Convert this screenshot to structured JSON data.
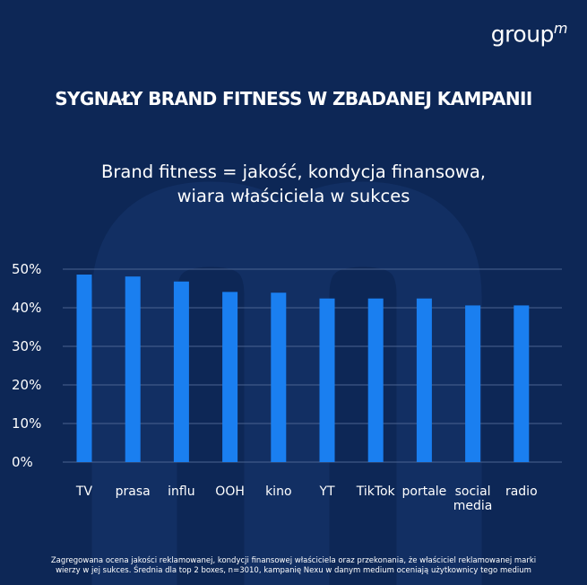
{
  "brand": {
    "logo_main": "group",
    "logo_sup": "m"
  },
  "headline": "SYGNAŁY BRAND FITNESS W ZBADANEJ KAMPANII",
  "subtitle": {
    "line1": "Brand fitness = jakość, kondycja finansowa,",
    "line2": "wiara właściciela w sukces"
  },
  "footnote": {
    "line1": "Zagregowana ocena jakości reklamowanej, kondycji finansowej właściciela oraz przekonania, że właściciel reklamowanej marki",
    "line2": "wierzy w jej sukces. Średnia dla top 2 boxes, n=3010, kampanię Nexu w danym medium oceniają użytkownicy tego medium"
  },
  "colors": {
    "background": "#0d2756",
    "bar": "#1a7ff0",
    "grid": "#4a6390",
    "text": "#ffffff"
  },
  "chart_data": {
    "type": "bar",
    "categories": [
      "TV",
      "prasa",
      "influ",
      "OOH",
      "kino",
      "YT",
      "TikTok",
      "portale",
      "social media",
      "radio"
    ],
    "category_lines": [
      [
        "TV"
      ],
      [
        "prasa"
      ],
      [
        "influ"
      ],
      [
        "OOH"
      ],
      [
        "kino"
      ],
      [
        "YT"
      ],
      [
        "TikTok"
      ],
      [
        "portale"
      ],
      [
        "social",
        "media"
      ],
      [
        "radio"
      ]
    ],
    "values": [
      48.6,
      48.1,
      46.8,
      44.1,
      43.9,
      42.4,
      42.4,
      42.4,
      40.6,
      40.6
    ],
    "ylim": [
      0,
      50
    ],
    "yticks": [
      0,
      10,
      20,
      30,
      40,
      50
    ],
    "ytick_labels": [
      "0%",
      "10%",
      "20%",
      "30%",
      "40%",
      "50%"
    ],
    "grid": true,
    "legend": "none"
  }
}
